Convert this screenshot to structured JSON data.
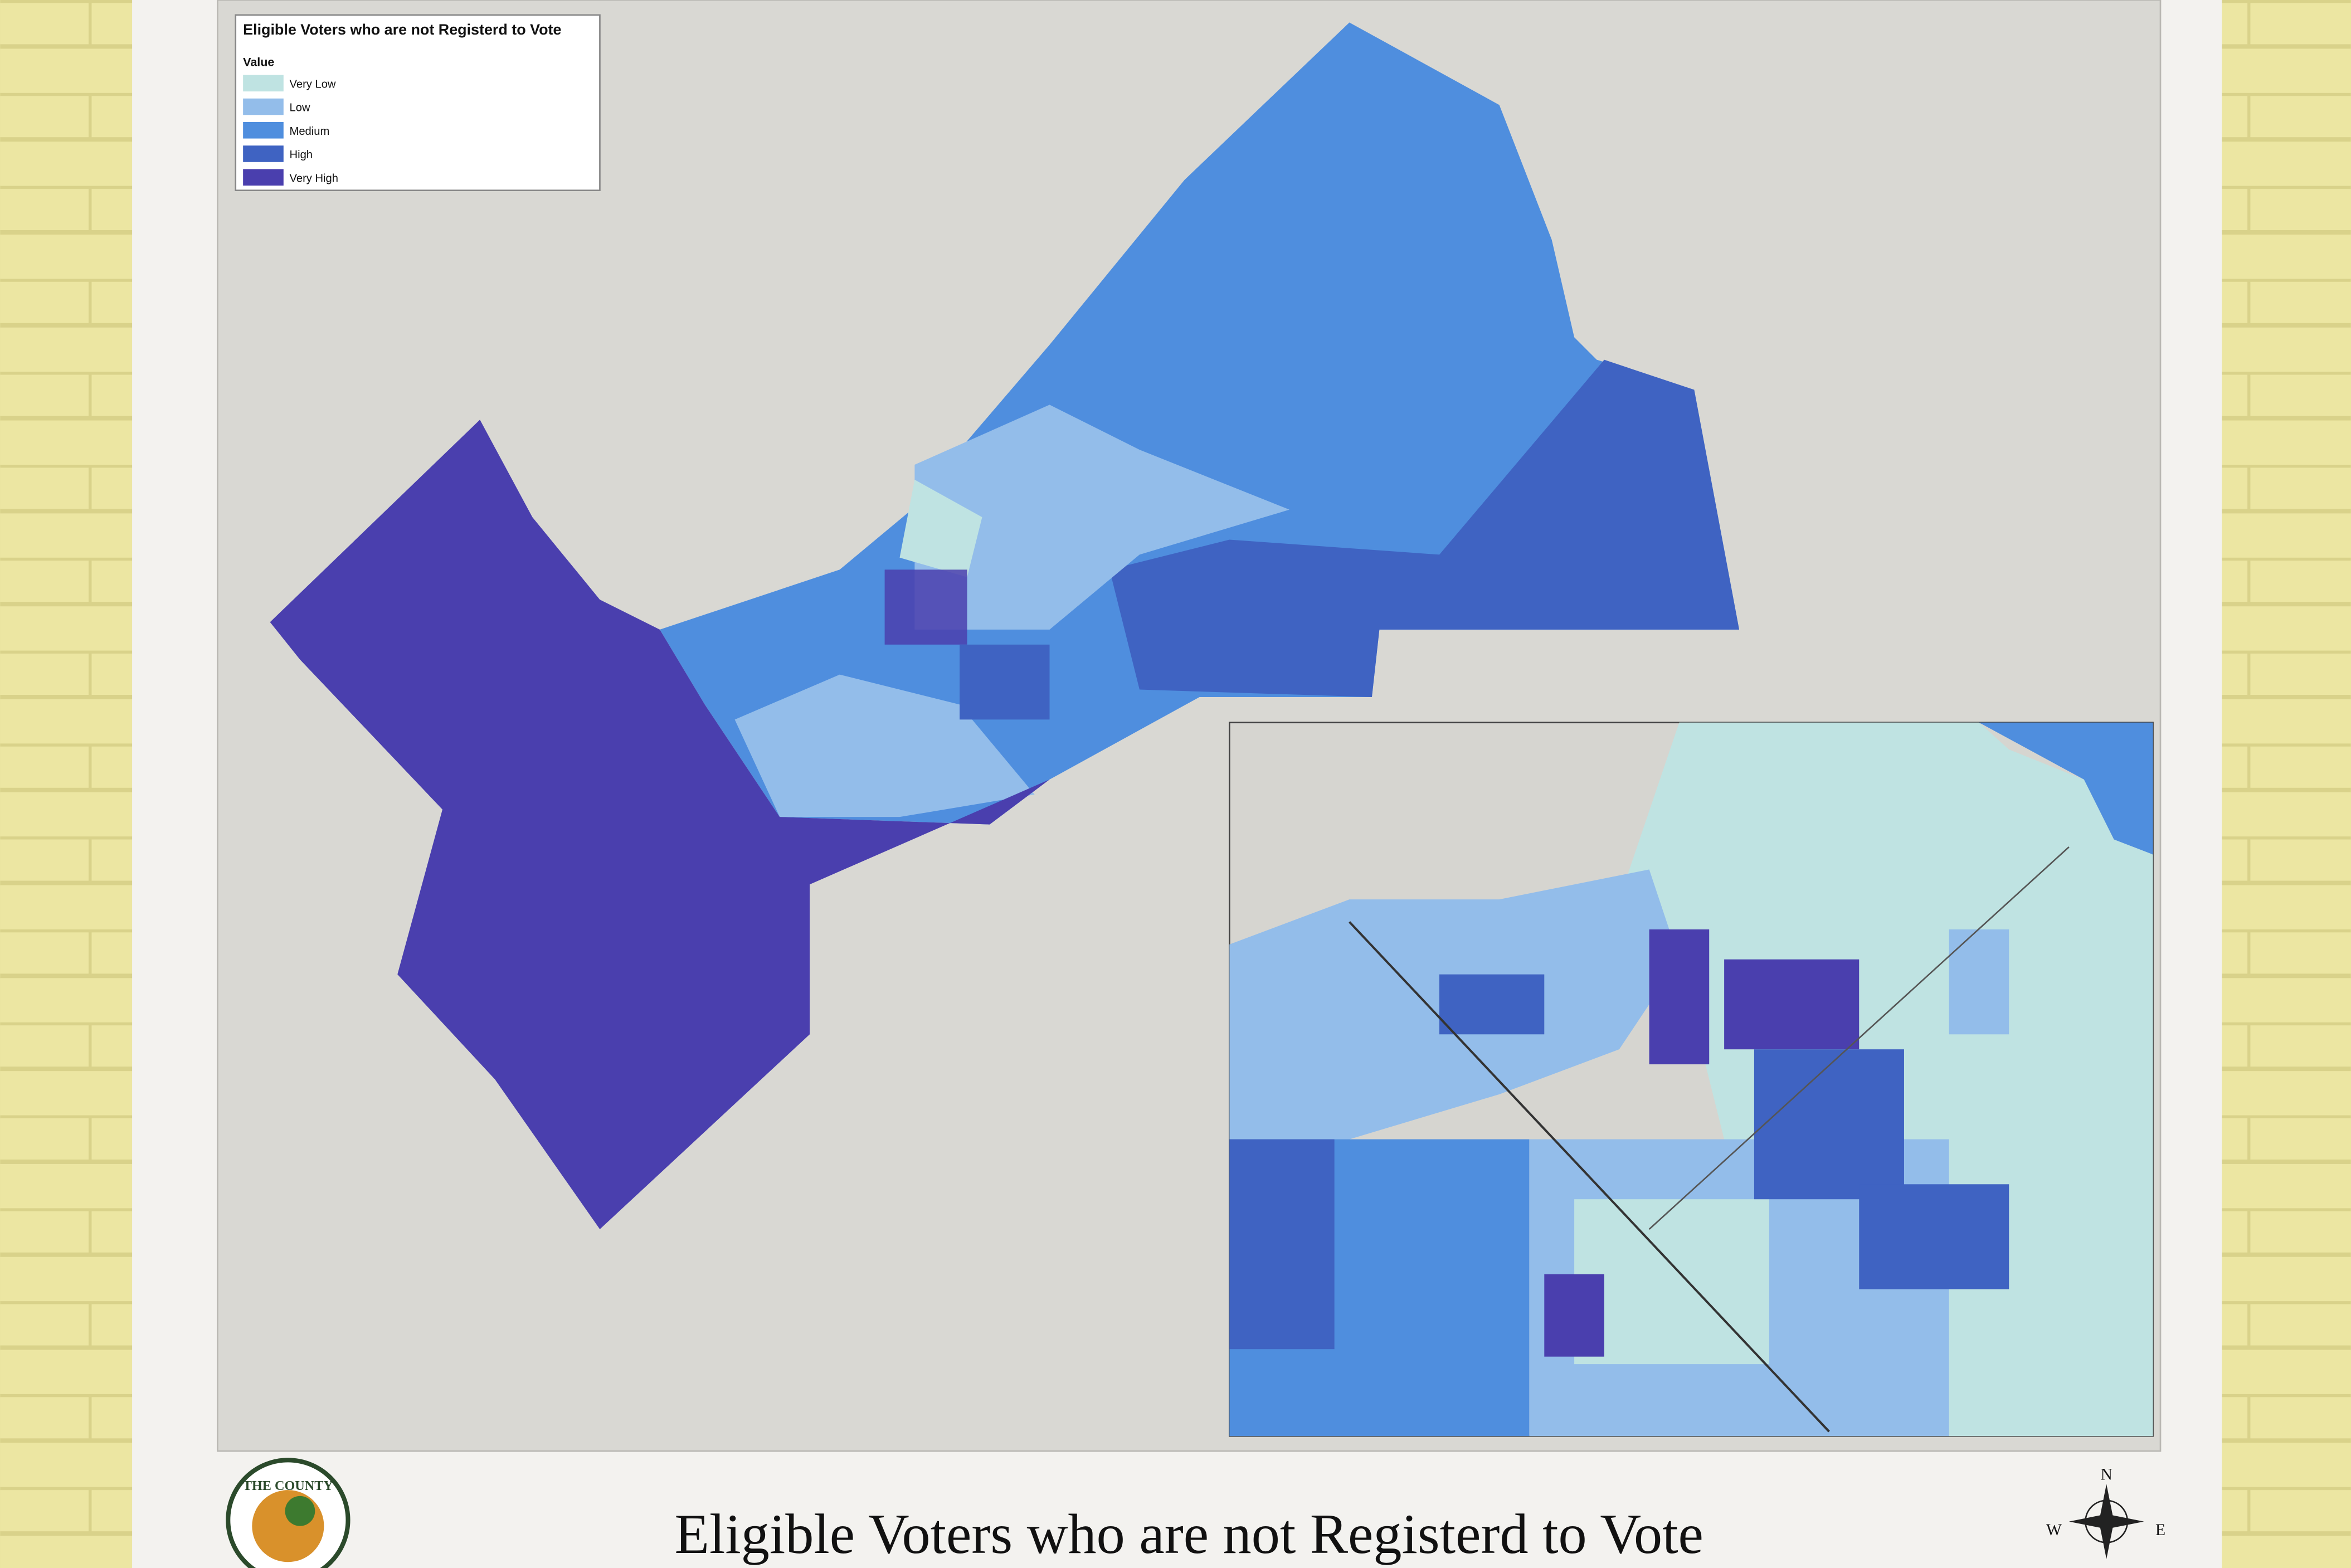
{
  "legend": {
    "title": "Eligible Voters who are not Registerd to Vote",
    "heading": "Value",
    "items": [
      {
        "label": "Very Low",
        "color": "#bfe3e2"
      },
      {
        "label": "Low",
        "color": "#93bdea"
      },
      {
        "label": "Medium",
        "color": "#4f8ede"
      },
      {
        "label": "High",
        "color": "#3f63c2"
      },
      {
        "label": "Very High",
        "color": "#4a3fae"
      }
    ]
  },
  "title": "Eligible Voters who are not Registerd to Vote",
  "logo": "THE COUNTY",
  "compass": {
    "north": "N",
    "west": "W",
    "east": "E"
  }
}
